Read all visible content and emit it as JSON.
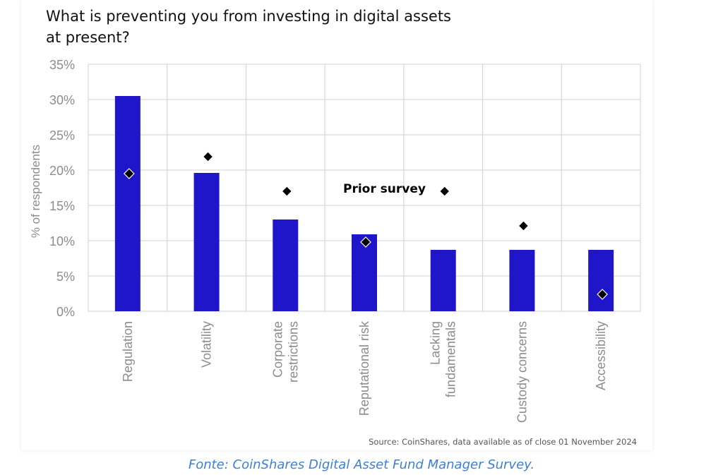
{
  "title_line1": "What is preventing you from investing in digital assets",
  "title_line2": "at present?",
  "source": "Source: CoinShares, data available as of close 01 November 2024",
  "caption": "Fonte: CoinShares Digital Asset Fund Manager Survey.",
  "colors": {
    "bar": "#1f16c9",
    "marker": "#000000",
    "grid": "#d0d0d0",
    "axis_text": "#8c8c8c",
    "caption": "#3d7fd6"
  },
  "chart_data": {
    "type": "bar",
    "title": "What is preventing you from investing in digital assets at present?",
    "ylabel": "% of respondents",
    "ylim": [
      0,
      35
    ],
    "yticks": [
      "0%",
      "5%",
      "10%",
      "15%",
      "20%",
      "25%",
      "30%",
      "35%"
    ],
    "ytick_values": [
      0,
      5,
      10,
      15,
      20,
      25,
      30,
      35
    ],
    "grid": true,
    "categories": [
      [
        "Regulation"
      ],
      [
        "Volatility"
      ],
      [
        "Corporate",
        "restrictions"
      ],
      [
        "Reputational risk"
      ],
      [
        "Lacking",
        "fundamentals"
      ],
      [
        "Custody concerns"
      ],
      [
        "Accessibility"
      ]
    ],
    "series": [
      {
        "type": "bar",
        "values": [
          30.5,
          19.6,
          13.0,
          10.9,
          8.7,
          8.7,
          8.7
        ]
      },
      {
        "name": "Prior survey",
        "type": "marker",
        "values": [
          19.5,
          21.9,
          17.0,
          9.8,
          17.0,
          12.1,
          2.4
        ]
      }
    ],
    "annotation": "Prior survey"
  }
}
